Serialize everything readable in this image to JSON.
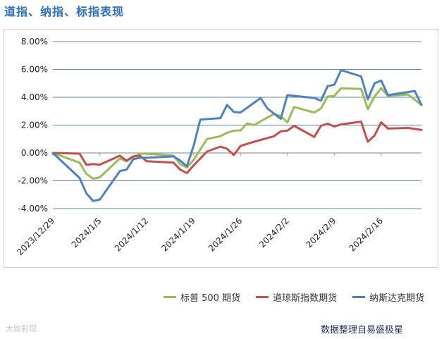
{
  "header": {
    "title": "道指、纳指、标指表现"
  },
  "chart_data": {
    "type": "line",
    "y_ticks": [
      "8.00%",
      "6.00%",
      "4.00%",
      "2.00%",
      "0.00%",
      "-2.00%",
      "-4.00%"
    ],
    "ylim": [
      -4,
      8
    ],
    "x_tick_labels": [
      "2023/12/29",
      "2024/1/5",
      "2024/1/12",
      "2024/1/19",
      "2024/1/26",
      "2024/2/2",
      "2024/2/9",
      "2024/2/16"
    ],
    "x_tick_dates": [
      "2023-12-29",
      "2024-01-05",
      "2024-01-12",
      "2024-01-19",
      "2024-01-26",
      "2024-02-02",
      "2024-02-09",
      "2024-02-16"
    ],
    "x_end": "2024-02-22",
    "grid": "horizontal",
    "legend_position": "bottom",
    "series": [
      {
        "name": "标普 500 期货",
        "color": "#9bbb59",
        "points": [
          [
            "2023-12-29",
            0.0
          ],
          [
            "2024-01-02",
            -0.7
          ],
          [
            "2024-01-03",
            -1.5
          ],
          [
            "2024-01-04",
            -1.85
          ],
          [
            "2024-01-05",
            -1.75
          ],
          [
            "2024-01-08",
            -0.4
          ],
          [
            "2024-01-09",
            -0.6
          ],
          [
            "2024-01-10",
            -0.3
          ],
          [
            "2024-01-11",
            -0.05
          ],
          [
            "2024-01-12",
            -0.05
          ],
          [
            "2024-01-16",
            -0.2
          ],
          [
            "2024-01-17",
            -0.8
          ],
          [
            "2024-01-18",
            -1.05
          ],
          [
            "2024-01-19",
            -0.5
          ],
          [
            "2024-01-21",
            1.0
          ],
          [
            "2024-01-23",
            1.2
          ],
          [
            "2024-01-24",
            1.45
          ],
          [
            "2024-01-25",
            1.6
          ],
          [
            "2024-01-26",
            1.62
          ],
          [
            "2024-01-27",
            2.12
          ],
          [
            "2024-01-28",
            2.0
          ],
          [
            "2024-01-31",
            2.8
          ],
          [
            "2024-02-01",
            2.65
          ],
          [
            "2024-02-02",
            2.2
          ],
          [
            "2024-02-03",
            3.3
          ],
          [
            "2024-02-06",
            2.9
          ],
          [
            "2024-02-07",
            3.2
          ],
          [
            "2024-02-08",
            4.05
          ],
          [
            "2024-02-09",
            4.1
          ],
          [
            "2024-02-10",
            4.65
          ],
          [
            "2024-02-13",
            4.6
          ],
          [
            "2024-02-14",
            3.15
          ],
          [
            "2024-02-15",
            4.05
          ],
          [
            "2024-02-16",
            4.65
          ],
          [
            "2024-02-17",
            4.1
          ],
          [
            "2024-02-20",
            4.2
          ],
          [
            "2024-02-22",
            3.45
          ]
        ]
      },
      {
        "name": "道琼斯指数期货",
        "color": "#c0504d",
        "points": [
          [
            "2023-12-29",
            0.0
          ],
          [
            "2024-01-02",
            -0.05
          ],
          [
            "2024-01-03",
            -0.85
          ],
          [
            "2024-01-04",
            -0.8
          ],
          [
            "2024-01-05",
            -0.85
          ],
          [
            "2024-01-08",
            -0.2
          ],
          [
            "2024-01-09",
            -0.55
          ],
          [
            "2024-01-10",
            -0.25
          ],
          [
            "2024-01-11",
            -0.2
          ],
          [
            "2024-01-12",
            -0.6
          ],
          [
            "2024-01-16",
            -0.7
          ],
          [
            "2024-01-17",
            -1.2
          ],
          [
            "2024-01-18",
            -1.45
          ],
          [
            "2024-01-19",
            -0.9
          ],
          [
            "2024-01-21",
            0.1
          ],
          [
            "2024-01-23",
            0.45
          ],
          [
            "2024-01-24",
            0.3
          ],
          [
            "2024-01-25",
            -0.15
          ],
          [
            "2024-01-26",
            0.5
          ],
          [
            "2024-01-28",
            0.8
          ],
          [
            "2024-01-31",
            1.2
          ],
          [
            "2024-02-01",
            1.55
          ],
          [
            "2024-02-02",
            1.6
          ],
          [
            "2024-02-03",
            1.95
          ],
          [
            "2024-02-06",
            1.15
          ],
          [
            "2024-02-07",
            1.95
          ],
          [
            "2024-02-08",
            2.1
          ],
          [
            "2024-02-09",
            1.9
          ],
          [
            "2024-02-10",
            2.05
          ],
          [
            "2024-02-13",
            2.25
          ],
          [
            "2024-02-14",
            0.8
          ],
          [
            "2024-02-15",
            1.25
          ],
          [
            "2024-02-16",
            2.2
          ],
          [
            "2024-02-17",
            1.75
          ],
          [
            "2024-02-20",
            1.8
          ],
          [
            "2024-02-22",
            1.65
          ]
        ]
      },
      {
        "name": "纳斯达克期货",
        "color": "#4f81bd",
        "points": [
          [
            "2023-12-29",
            0.0
          ],
          [
            "2024-01-02",
            -1.8
          ],
          [
            "2024-01-03",
            -2.9
          ],
          [
            "2024-01-04",
            -3.45
          ],
          [
            "2024-01-05",
            -3.35
          ],
          [
            "2024-01-08",
            -1.3
          ],
          [
            "2024-01-09",
            -1.2
          ],
          [
            "2024-01-10",
            -0.45
          ],
          [
            "2024-01-11",
            -0.35
          ],
          [
            "2024-01-12",
            -0.35
          ],
          [
            "2024-01-16",
            -0.25
          ],
          [
            "2024-01-17",
            -0.55
          ],
          [
            "2024-01-18",
            -0.95
          ],
          [
            "2024-01-19",
            0.5
          ],
          [
            "2024-01-20",
            2.4
          ],
          [
            "2024-01-23",
            2.5
          ],
          [
            "2024-01-24",
            3.45
          ],
          [
            "2024-01-25",
            2.95
          ],
          [
            "2024-01-26",
            2.9
          ],
          [
            "2024-01-29",
            3.95
          ],
          [
            "2024-01-30",
            3.2
          ],
          [
            "2024-02-01",
            2.45
          ],
          [
            "2024-02-02",
            4.15
          ],
          [
            "2024-02-05",
            4.0
          ],
          [
            "2024-02-06",
            3.95
          ],
          [
            "2024-02-07",
            3.75
          ],
          [
            "2024-02-08",
            4.8
          ],
          [
            "2024-02-09",
            4.9
          ],
          [
            "2024-02-10",
            5.95
          ],
          [
            "2024-02-13",
            5.5
          ],
          [
            "2024-02-14",
            3.85
          ],
          [
            "2024-02-15",
            5.0
          ],
          [
            "2024-02-16",
            5.2
          ],
          [
            "2024-02-17",
            4.15
          ],
          [
            "2024-02-21",
            4.45
          ],
          [
            "2024-02-22",
            3.45
          ]
        ]
      }
    ]
  },
  "footer": {
    "source": "数据整理自易盛极星",
    "watermark": "大致彩现"
  }
}
